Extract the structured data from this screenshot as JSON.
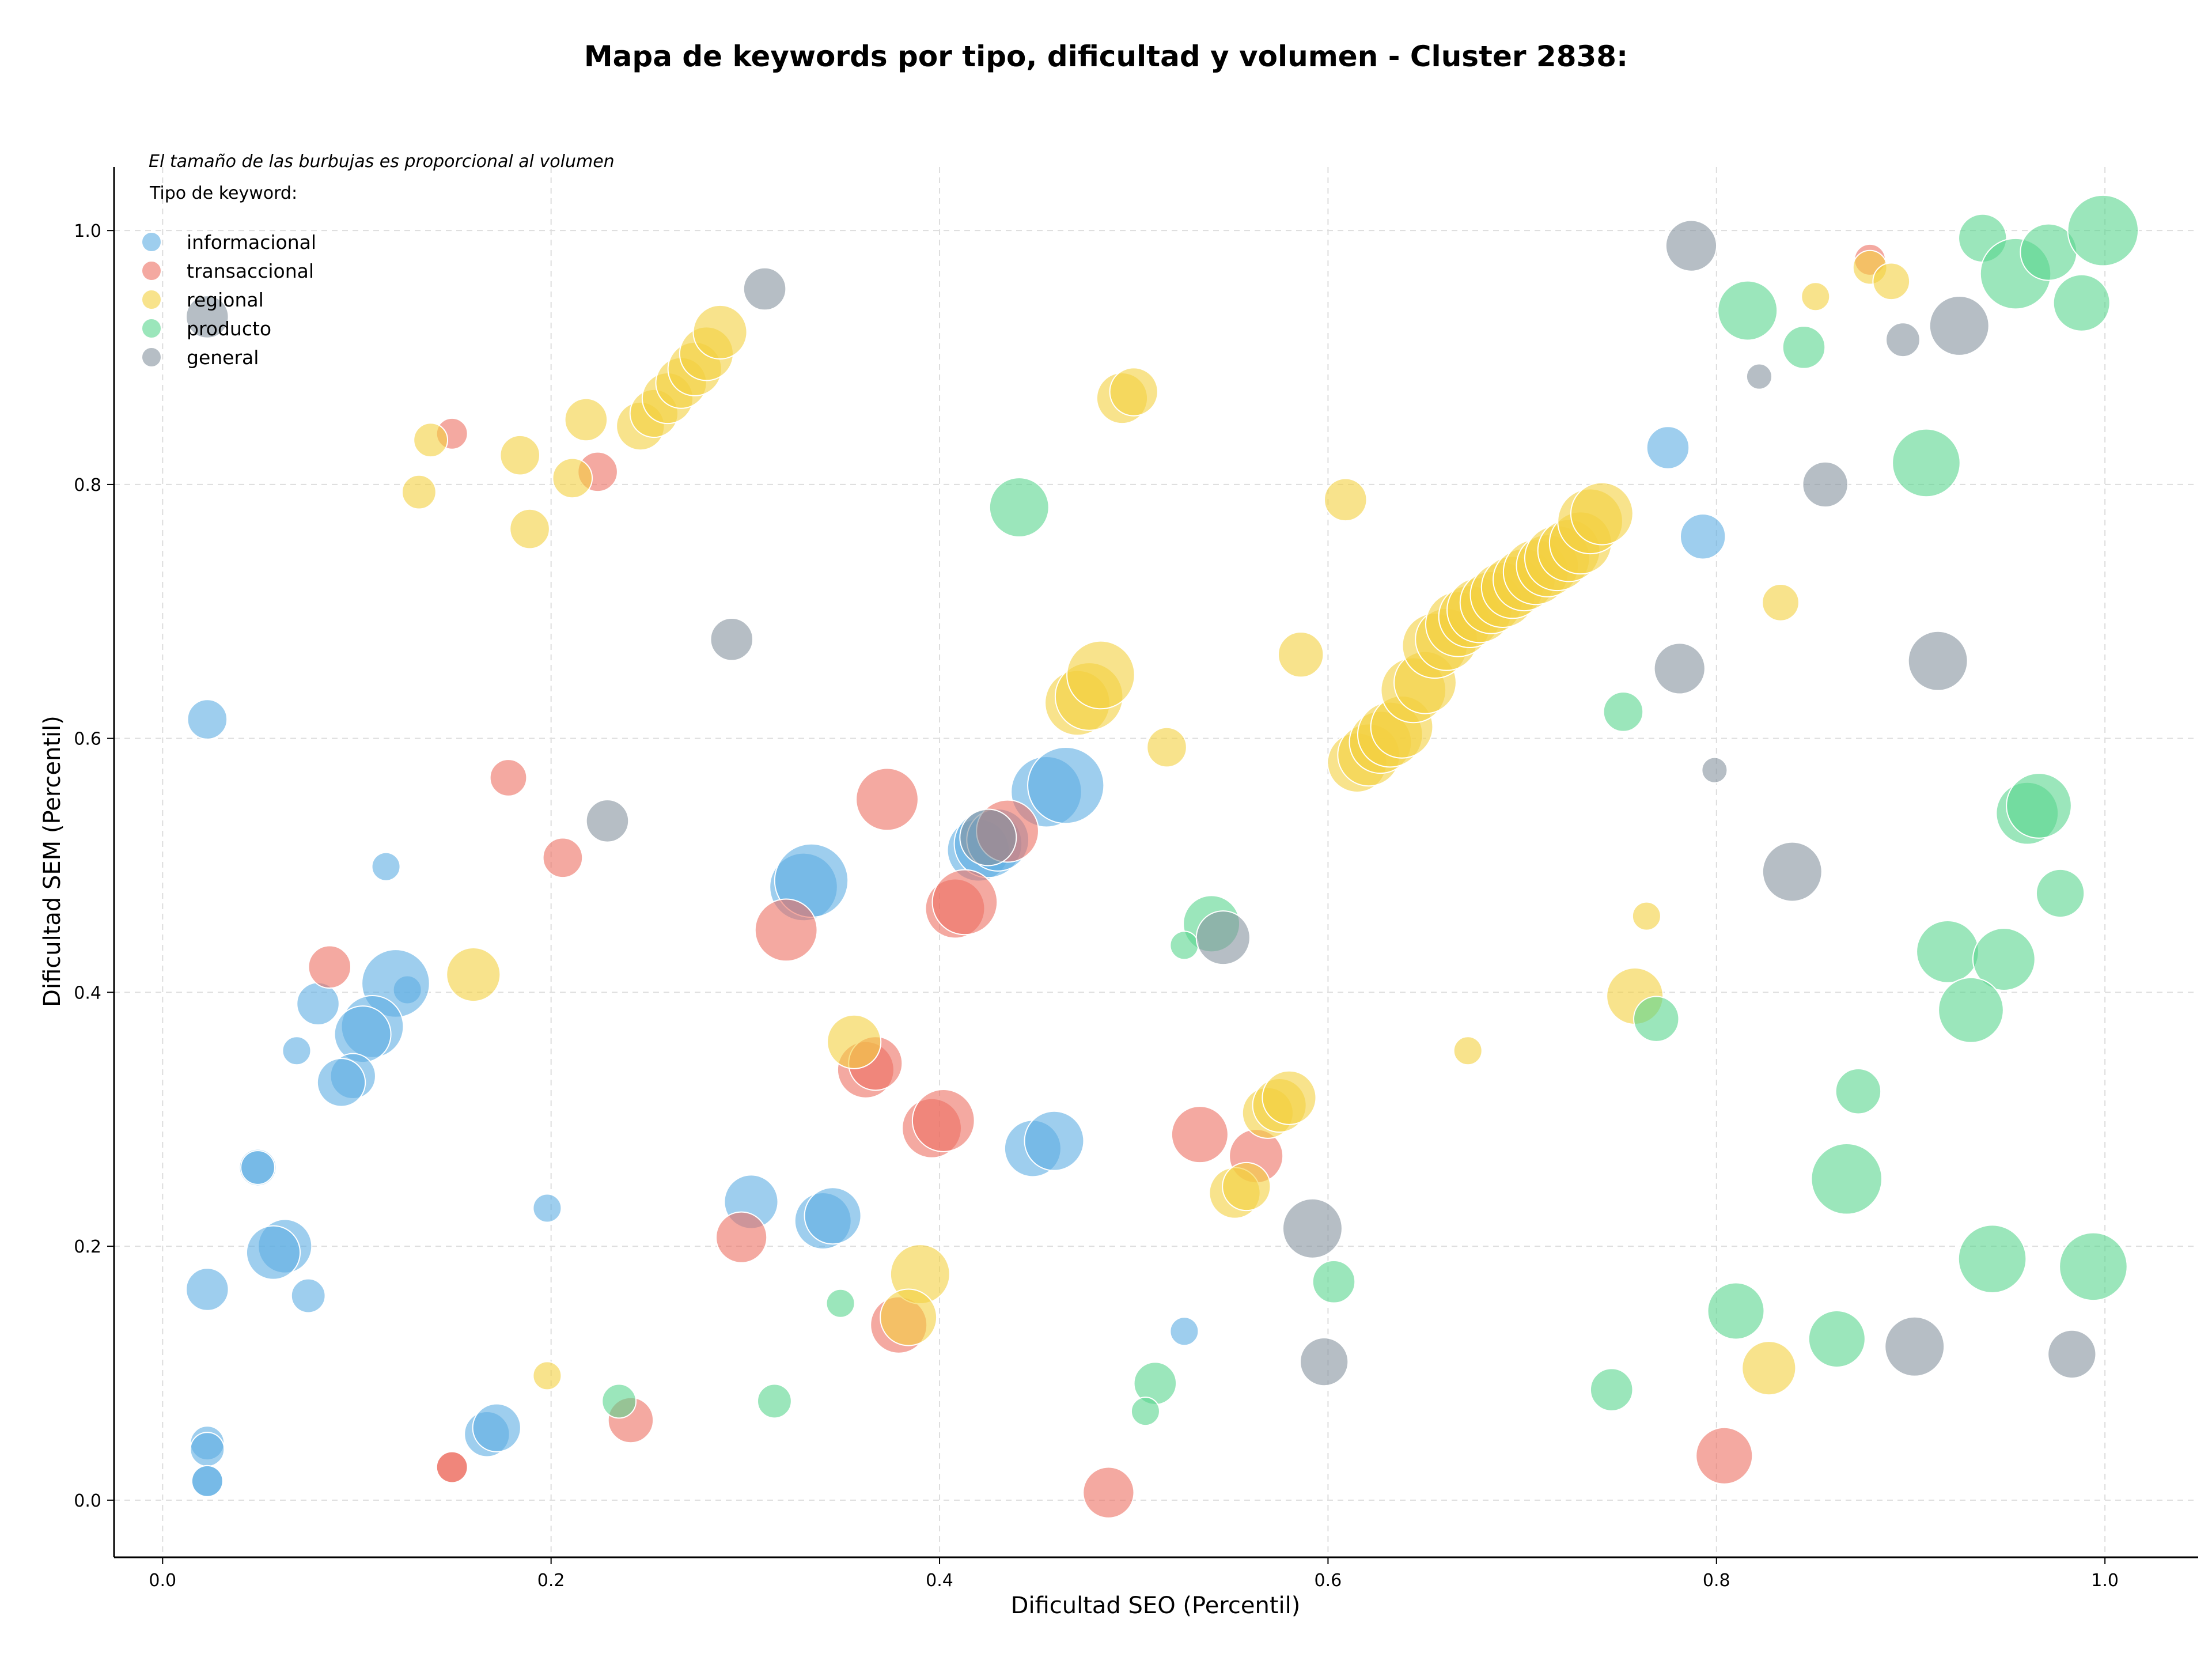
{
  "chart_data": {
    "type": "scatter",
    "title": "Mapa de keywords por tipo, dificultad y volumen - Cluster 2838:",
    "xlabel": "Dificultad SEO (Percentil)",
    "ylabel": "Dificultad SEM (Percentil)",
    "note": "El tamaño de las burbujas es proporcional al volumen",
    "legend_title": "Tipo de keyword:",
    "legend_position": "top-left",
    "grid": true,
    "xlim": [
      -0.025,
      1.048
    ],
    "ylim": [
      -0.045,
      1.05
    ],
    "xticks": [
      "0.0",
      "0.2",
      "0.4",
      "0.6",
      "0.8",
      "1.0"
    ],
    "yticks": [
      "0.0",
      "0.2",
      "0.4",
      "0.6",
      "0.8",
      "1.0"
    ],
    "series": [
      {
        "name": "informacional",
        "color": "#5DADE2",
        "points": [
          [
            0.023,
            0.615,
            14
          ],
          [
            0.115,
            0.499,
            10
          ],
          [
            0.08,
            0.391,
            15
          ],
          [
            0.069,
            0.354,
            10
          ],
          [
            0.126,
            0.402,
            10
          ],
          [
            0.12,
            0.407,
            24
          ],
          [
            0.108,
            0.373,
            22
          ],
          [
            0.103,
            0.367,
            20
          ],
          [
            0.098,
            0.334,
            16
          ],
          [
            0.092,
            0.329,
            17
          ],
          [
            0.049,
            0.262,
            13
          ],
          [
            0.049,
            0.262,
            12
          ],
          [
            0.063,
            0.2,
            19
          ],
          [
            0.057,
            0.195,
            19
          ],
          [
            0.075,
            0.161,
            12
          ],
          [
            0.023,
            0.166,
            15
          ],
          [
            0.023,
            0.045,
            12
          ],
          [
            0.023,
            0.04,
            12
          ],
          [
            0.023,
            0.015,
            11
          ],
          [
            0.023,
            0.015,
            11
          ],
          [
            0.167,
            0.052,
            16
          ],
          [
            0.172,
            0.057,
            17
          ],
          [
            0.198,
            0.23,
            10
          ],
          [
            0.303,
            0.235,
            19
          ],
          [
            0.34,
            0.22,
            20
          ],
          [
            0.345,
            0.224,
            20
          ],
          [
            0.33,
            0.483,
            24
          ],
          [
            0.334,
            0.488,
            26
          ],
          [
            0.42,
            0.512,
            22
          ],
          [
            0.425,
            0.517,
            24
          ],
          [
            0.43,
            0.52,
            22
          ],
          [
            0.455,
            0.558,
            25
          ],
          [
            0.465,
            0.563,
            27
          ],
          [
            0.448,
            0.277,
            20
          ],
          [
            0.459,
            0.283,
            21
          ],
          [
            0.526,
            0.133,
            10
          ],
          [
            0.775,
            0.829,
            15
          ],
          [
            0.793,
            0.759,
            16
          ]
        ]
      },
      {
        "name": "transaccional",
        "color": "#EC7063",
        "points": [
          [
            0.149,
            0.84,
            11
          ],
          [
            0.224,
            0.81,
            14
          ],
          [
            0.178,
            0.569,
            13
          ],
          [
            0.206,
            0.506,
            14
          ],
          [
            0.086,
            0.42,
            15
          ],
          [
            0.373,
            0.552,
            22
          ],
          [
            0.321,
            0.449,
            22
          ],
          [
            0.408,
            0.466,
            21
          ],
          [
            0.413,
            0.471,
            23
          ],
          [
            0.435,
            0.527,
            22
          ],
          [
            0.362,
            0.339,
            20
          ],
          [
            0.367,
            0.344,
            19
          ],
          [
            0.396,
            0.293,
            21
          ],
          [
            0.402,
            0.299,
            22
          ],
          [
            0.298,
            0.207,
            18
          ],
          [
            0.149,
            0.026,
            11
          ],
          [
            0.149,
            0.026,
            11
          ],
          [
            0.241,
            0.063,
            16
          ],
          [
            0.379,
            0.138,
            20
          ],
          [
            0.534,
            0.288,
            20
          ],
          [
            0.563,
            0.271,
            19
          ],
          [
            0.487,
            0.006,
            18
          ],
          [
            0.804,
            0.035,
            20
          ],
          [
            0.879,
            0.977,
            11
          ]
        ]
      },
      {
        "name": "regional",
        "color": "#F4D03F",
        "points": [
          [
            0.138,
            0.835,
            12
          ],
          [
            0.132,
            0.794,
            12
          ],
          [
            0.184,
            0.823,
            14
          ],
          [
            0.189,
            0.765,
            14
          ],
          [
            0.211,
            0.805,
            14
          ],
          [
            0.218,
            0.851,
            15
          ],
          [
            0.246,
            0.846,
            17
          ],
          [
            0.253,
            0.856,
            17
          ],
          [
            0.26,
            0.868,
            18
          ],
          [
            0.267,
            0.88,
            18
          ],
          [
            0.274,
            0.891,
            19
          ],
          [
            0.28,
            0.903,
            19
          ],
          [
            0.287,
            0.92,
            19
          ],
          [
            0.16,
            0.414,
            19
          ],
          [
            0.356,
            0.361,
            19
          ],
          [
            0.39,
            0.178,
            21
          ],
          [
            0.384,
            0.144,
            20
          ],
          [
            0.198,
            0.098,
            10
          ],
          [
            0.494,
            0.868,
            18
          ],
          [
            0.5,
            0.873,
            17
          ],
          [
            0.471,
            0.628,
            23
          ],
          [
            0.477,
            0.633,
            24
          ],
          [
            0.483,
            0.65,
            24
          ],
          [
            0.517,
            0.593,
            14
          ],
          [
            0.552,
            0.242,
            18
          ],
          [
            0.558,
            0.247,
            17
          ],
          [
            0.569,
            0.305,
            18
          ],
          [
            0.575,
            0.311,
            19
          ],
          [
            0.58,
            0.317,
            19
          ],
          [
            0.609,
            0.788,
            15
          ],
          [
            0.586,
            0.666,
            16
          ],
          [
            0.615,
            0.581,
            21
          ],
          [
            0.621,
            0.587,
            22
          ],
          [
            0.627,
            0.597,
            22
          ],
          [
            0.632,
            0.603,
            23
          ],
          [
            0.638,
            0.609,
            22
          ],
          [
            0.644,
            0.638,
            23
          ],
          [
            0.65,
            0.644,
            22
          ],
          [
            0.655,
            0.673,
            23
          ],
          [
            0.661,
            0.678,
            22
          ],
          [
            0.667,
            0.69,
            23
          ],
          [
            0.673,
            0.696,
            22
          ],
          [
            0.678,
            0.701,
            23
          ],
          [
            0.684,
            0.707,
            22
          ],
          [
            0.69,
            0.713,
            23
          ],
          [
            0.695,
            0.719,
            22
          ],
          [
            0.701,
            0.725,
            22
          ],
          [
            0.707,
            0.731,
            23
          ],
          [
            0.713,
            0.736,
            22
          ],
          [
            0.718,
            0.742,
            23
          ],
          [
            0.724,
            0.748,
            22
          ],
          [
            0.73,
            0.754,
            22
          ],
          [
            0.735,
            0.771,
            23
          ],
          [
            0.741,
            0.777,
            22
          ],
          [
            0.672,
            0.354,
            10
          ],
          [
            0.764,
            0.46,
            10
          ],
          [
            0.758,
            0.397,
            20
          ],
          [
            0.833,
            0.707,
            13
          ],
          [
            0.827,
            0.104,
            19
          ],
          [
            0.851,
            0.948,
            10
          ],
          [
            0.879,
            0.971,
            12
          ],
          [
            0.89,
            0.96,
            13
          ]
        ]
      },
      {
        "name": "producto",
        "color": "#58D68D",
        "points": [
          [
            0.441,
            0.782,
            21
          ],
          [
            0.54,
            0.454,
            20
          ],
          [
            0.526,
            0.437,
            10
          ],
          [
            0.349,
            0.155,
            10
          ],
          [
            0.315,
            0.078,
            12
          ],
          [
            0.235,
            0.078,
            12
          ],
          [
            0.511,
            0.092,
            15
          ],
          [
            0.506,
            0.07,
            10
          ],
          [
            0.603,
            0.172,
            15
          ],
          [
            0.752,
            0.621,
            14
          ],
          [
            0.769,
            0.379,
            16
          ],
          [
            0.746,
            0.087,
            15
          ],
          [
            0.816,
            0.937,
            21
          ],
          [
            0.845,
            0.908,
            15
          ],
          [
            0.937,
            0.994,
            17
          ],
          [
            0.954,
            0.966,
            25
          ],
          [
            0.971,
            0.983,
            20
          ],
          [
            0.999,
            1.0,
            25
          ],
          [
            0.988,
            0.943,
            20
          ],
          [
            0.908,
            0.817,
            24
          ],
          [
            0.96,
            0.541,
            22
          ],
          [
            0.966,
            0.547,
            23
          ],
          [
            0.977,
            0.478,
            17
          ],
          [
            0.919,
            0.432,
            22
          ],
          [
            0.948,
            0.426,
            22
          ],
          [
            0.931,
            0.386,
            23
          ],
          [
            0.873,
            0.322,
            16
          ],
          [
            0.867,
            0.253,
            25
          ],
          [
            0.942,
            0.19,
            24
          ],
          [
            0.994,
            0.184,
            24
          ],
          [
            0.81,
            0.149,
            20
          ],
          [
            0.862,
            0.127,
            20
          ]
        ]
      },
      {
        "name": "general",
        "color": "#85929E",
        "points": [
          [
            0.023,
            0.932,
            15
          ],
          [
            0.31,
            0.954,
            15
          ],
          [
            0.293,
            0.678,
            15
          ],
          [
            0.229,
            0.535,
            15
          ],
          [
            0.425,
            0.522,
            20
          ],
          [
            0.546,
            0.443,
            19
          ],
          [
            0.592,
            0.214,
            21
          ],
          [
            0.598,
            0.109,
            17
          ],
          [
            0.787,
            0.988,
            18
          ],
          [
            0.822,
            0.885,
            9
          ],
          [
            0.896,
            0.914,
            12
          ],
          [
            0.925,
            0.925,
            21
          ],
          [
            0.856,
            0.8,
            16
          ],
          [
            0.781,
            0.655,
            18
          ],
          [
            0.799,
            0.575,
            9
          ],
          [
            0.914,
            0.661,
            21
          ],
          [
            0.839,
            0.495,
            21
          ],
          [
            0.902,
            0.121,
            21
          ],
          [
            0.983,
            0.115,
            17
          ]
        ]
      }
    ]
  }
}
